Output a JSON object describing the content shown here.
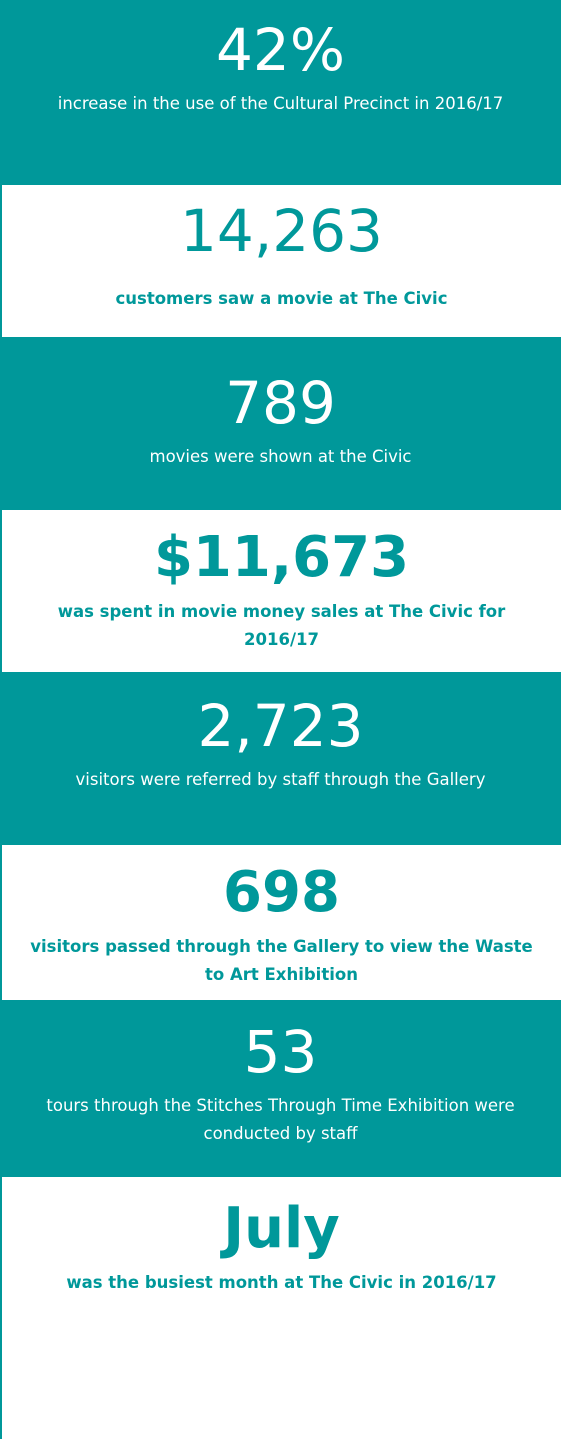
{
  "items": [
    {
      "number": "42%",
      "text": "increase in the use of the Cultural Precinct in 2016/17"
    },
    {
      "number": "14,263",
      "text": "customers saw a movie at The Civic"
    },
    {
      "number": "789",
      "text": "movies were shown at the Civic"
    },
    {
      "number": "$11,673",
      "text": "was spent in movie money sales at The Civic for 2016/17"
    },
    {
      "number": "2,723",
      "text": "visitors were referred by staff through the Gallery"
    },
    {
      "number": "698",
      "text": "visitors passed through the Gallery to view the Waste to Art Exhibition"
    },
    {
      "number": "53",
      "text": "tours through the Stitches Through Time Exhibition were conducted by staff"
    },
    {
      "number": "July",
      "text": "was the busiest month at The Civic in 2016/17"
    }
  ]
}
